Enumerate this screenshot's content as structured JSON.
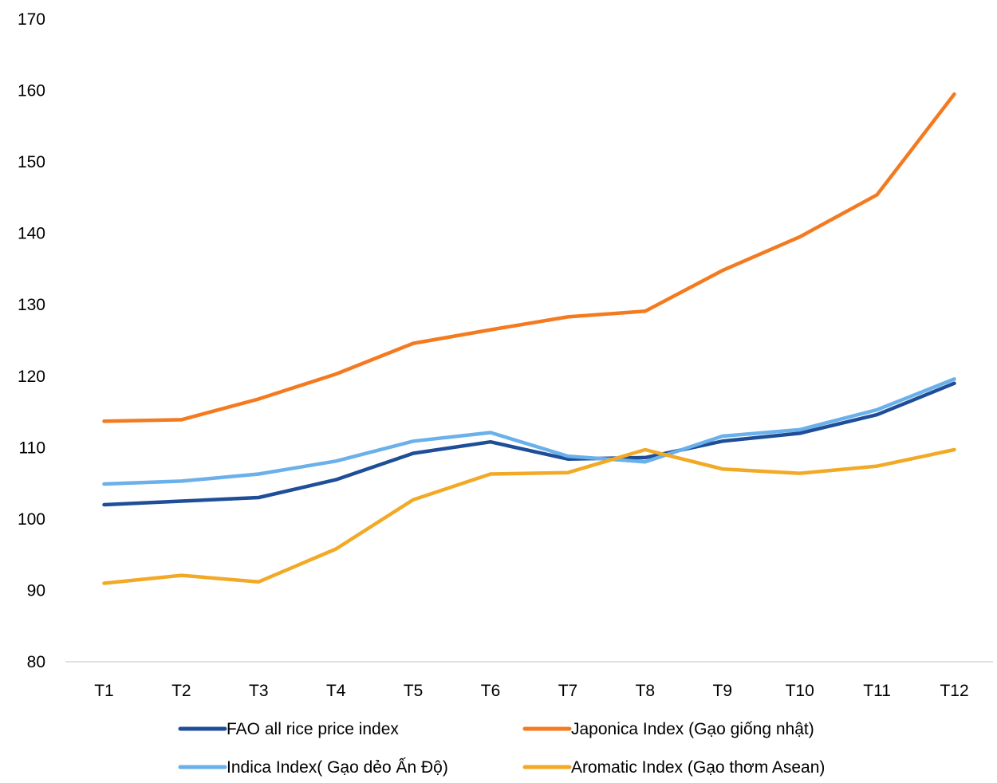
{
  "chart_data": {
    "type": "line",
    "categories": [
      "T1",
      "T2",
      "T3",
      "T4",
      "T5",
      "T6",
      "T7",
      "T8",
      "T9",
      "T10",
      "T11",
      "T12"
    ],
    "ylim": [
      80,
      170
    ],
    "yticks": [
      80,
      90,
      100,
      110,
      120,
      130,
      140,
      150,
      160,
      170
    ],
    "grid": false,
    "legend_position": "bottom",
    "series": [
      {
        "name": "FAO all rice price index",
        "color": "#1F4E98",
        "values": [
          102.0,
          102.5,
          103.0,
          105.5,
          109.2,
          110.8,
          108.4,
          108.6,
          110.9,
          112.0,
          114.6,
          119.0
        ]
      },
      {
        "name": "Japonica Index (Gạo giống nhật)",
        "color": "#F47A1F",
        "values": [
          113.7,
          113.9,
          116.8,
          120.3,
          124.6,
          126.5,
          128.3,
          129.1,
          134.8,
          139.5,
          145.4,
          159.5
        ]
      },
      {
        "name": "Indica Index( Gạo dẻo Ấn Độ)",
        "color": "#6AB0EA",
        "values": [
          104.9,
          105.3,
          106.3,
          108.1,
          110.9,
          112.1,
          108.8,
          108.0,
          111.6,
          112.5,
          115.3,
          119.6
        ]
      },
      {
        "name": "Aromatic Index (Gạo thơm Asean)",
        "color": "#F2AA26",
        "values": [
          91.0,
          92.1,
          91.2,
          95.8,
          102.7,
          106.3,
          106.5,
          109.7,
          107.0,
          106.4,
          107.4,
          109.7
        ]
      }
    ]
  }
}
